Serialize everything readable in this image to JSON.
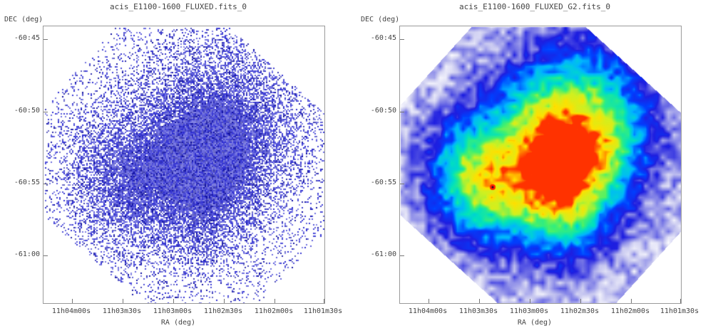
{
  "panels": [
    {
      "title": "acis_E1100-1600_FLUXED.fits_0",
      "ylabel": "DEC (deg)",
      "xlabel": "RA (deg)",
      "yticks": [
        "-60:45",
        "-60:50",
        "-60:55",
        "-61:00"
      ],
      "xticks": [
        "11h04m00s",
        "11h03m30s",
        "11h03m00s",
        "11h02m30s",
        "11h02m00s",
        "11h01m30s"
      ],
      "render": "scatter",
      "color": "#2a2ad0"
    },
    {
      "title": "acis_E1100-1600_FLUXED_G2.fits_0",
      "ylabel": "DEC (deg)",
      "xlabel": "RA (deg)",
      "yticks": [
        "-60:45",
        "-60:50",
        "-60:55",
        "-61:00"
      ],
      "xticks": [
        "11h04m00s",
        "11h03m30s",
        "11h03m00s",
        "11h02m30s",
        "11h02m00s",
        "11h01m30s"
      ],
      "render": "smoothed",
      "colormap": [
        "#ffffff",
        "#c8c8f0",
        "#7a7ae6",
        "#1e1ee0",
        "#0040ff",
        "#00b4ff",
        "#00e0c0",
        "#40f070",
        "#d0f020",
        "#ffe000",
        "#ff3000"
      ]
    }
  ]
}
